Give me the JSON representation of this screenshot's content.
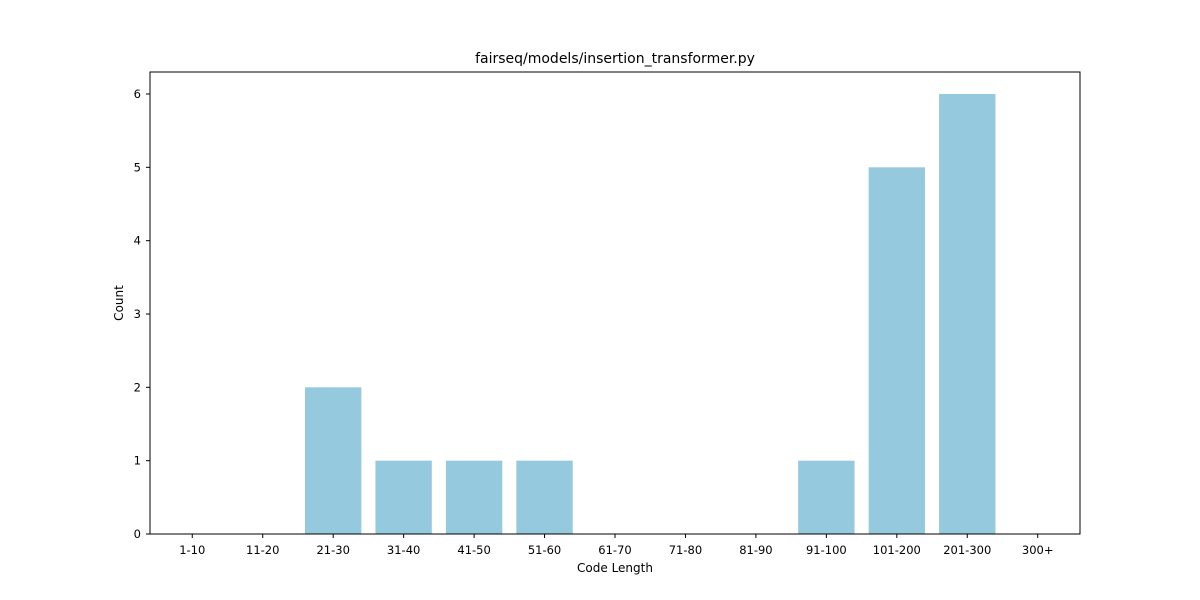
{
  "chart_data": {
    "type": "bar",
    "title": "fairseq/models/insertion_transformer.py",
    "xlabel": "Code Length",
    "ylabel": "Count",
    "categories": [
      "1-10",
      "11-20",
      "21-30",
      "31-40",
      "41-50",
      "51-60",
      "61-70",
      "71-80",
      "81-90",
      "91-100",
      "101-200",
      "201-300",
      "300+"
    ],
    "values": [
      0,
      0,
      2,
      1,
      1,
      1,
      0,
      0,
      0,
      1,
      5,
      6,
      0
    ],
    "ylim": [
      0,
      6.3
    ],
    "yticks": [
      0,
      1,
      2,
      3,
      4,
      5,
      6
    ],
    "grid": false,
    "legend": "none",
    "bar_color": "#95c9dd"
  }
}
